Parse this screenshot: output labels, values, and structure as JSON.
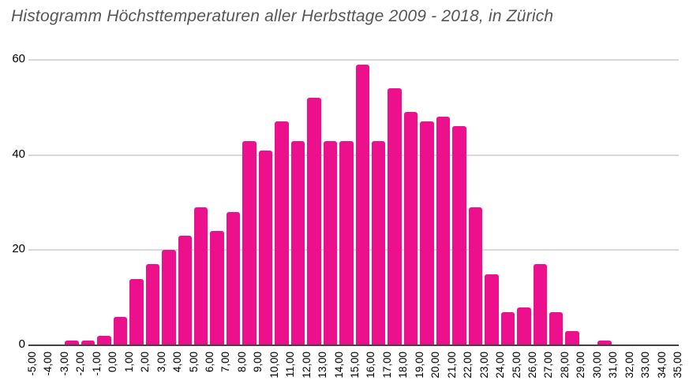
{
  "title": "Histogramm Höchsttemperaturen aller Herbsttage 2009 - 2018, in Zürich",
  "chart_data": {
    "type": "bar",
    "subtype": "histogram",
    "title": "Histogramm Höchsttemperaturen aller Herbsttage 2009 - 2018, in Zürich",
    "x_tick_labels": [
      "-5,00",
      "-4,00",
      "-3,00",
      "-2,00",
      "-1,00",
      "0,00",
      "1,00",
      "2,00",
      "3,00",
      "4,00",
      "5,00",
      "6,00",
      "7,00",
      "8,00",
      "9,00",
      "10,00",
      "11,00",
      "12,00",
      "13,00",
      "14,00",
      "15,00",
      "16,00",
      "17,00",
      "18,00",
      "19,00",
      "20,00",
      "21,00",
      "22,00",
      "23,00",
      "24,00",
      "25,00",
      "26,00",
      "27,00",
      "28,00",
      "29,00",
      "30,00",
      "31,00",
      "32,00",
      "33,00",
      "34,00",
      "35,00"
    ],
    "bin_edges": [
      -5,
      -4,
      -3,
      -2,
      -1,
      0,
      1,
      2,
      3,
      4,
      5,
      6,
      7,
      8,
      9,
      10,
      11,
      12,
      13,
      14,
      15,
      16,
      17,
      18,
      19,
      20,
      21,
      22,
      23,
      24,
      25,
      26,
      27,
      28,
      29,
      30,
      31,
      32,
      33,
      34,
      35
    ],
    "bin_width": 1,
    "counts": [
      0,
      0,
      1,
      1,
      2,
      6,
      14,
      17,
      20,
      23,
      29,
      24,
      28,
      43,
      41,
      47,
      43,
      52,
      43,
      43,
      59,
      43,
      54,
      49,
      47,
      48,
      46,
      29,
      15,
      7,
      8,
      17,
      7,
      3,
      0,
      1,
      0,
      0,
      0,
      0
    ],
    "y_ticks": [
      0,
      20,
      40,
      60
    ],
    "ylim": [
      0,
      60
    ],
    "grid": "horizontal",
    "legend": "none",
    "bar_color": "#ED108D",
    "gridline_color": "#d9d9d9",
    "axis_color": "#424242",
    "title_color": "#565656",
    "tick_label_color": "#000000"
  }
}
